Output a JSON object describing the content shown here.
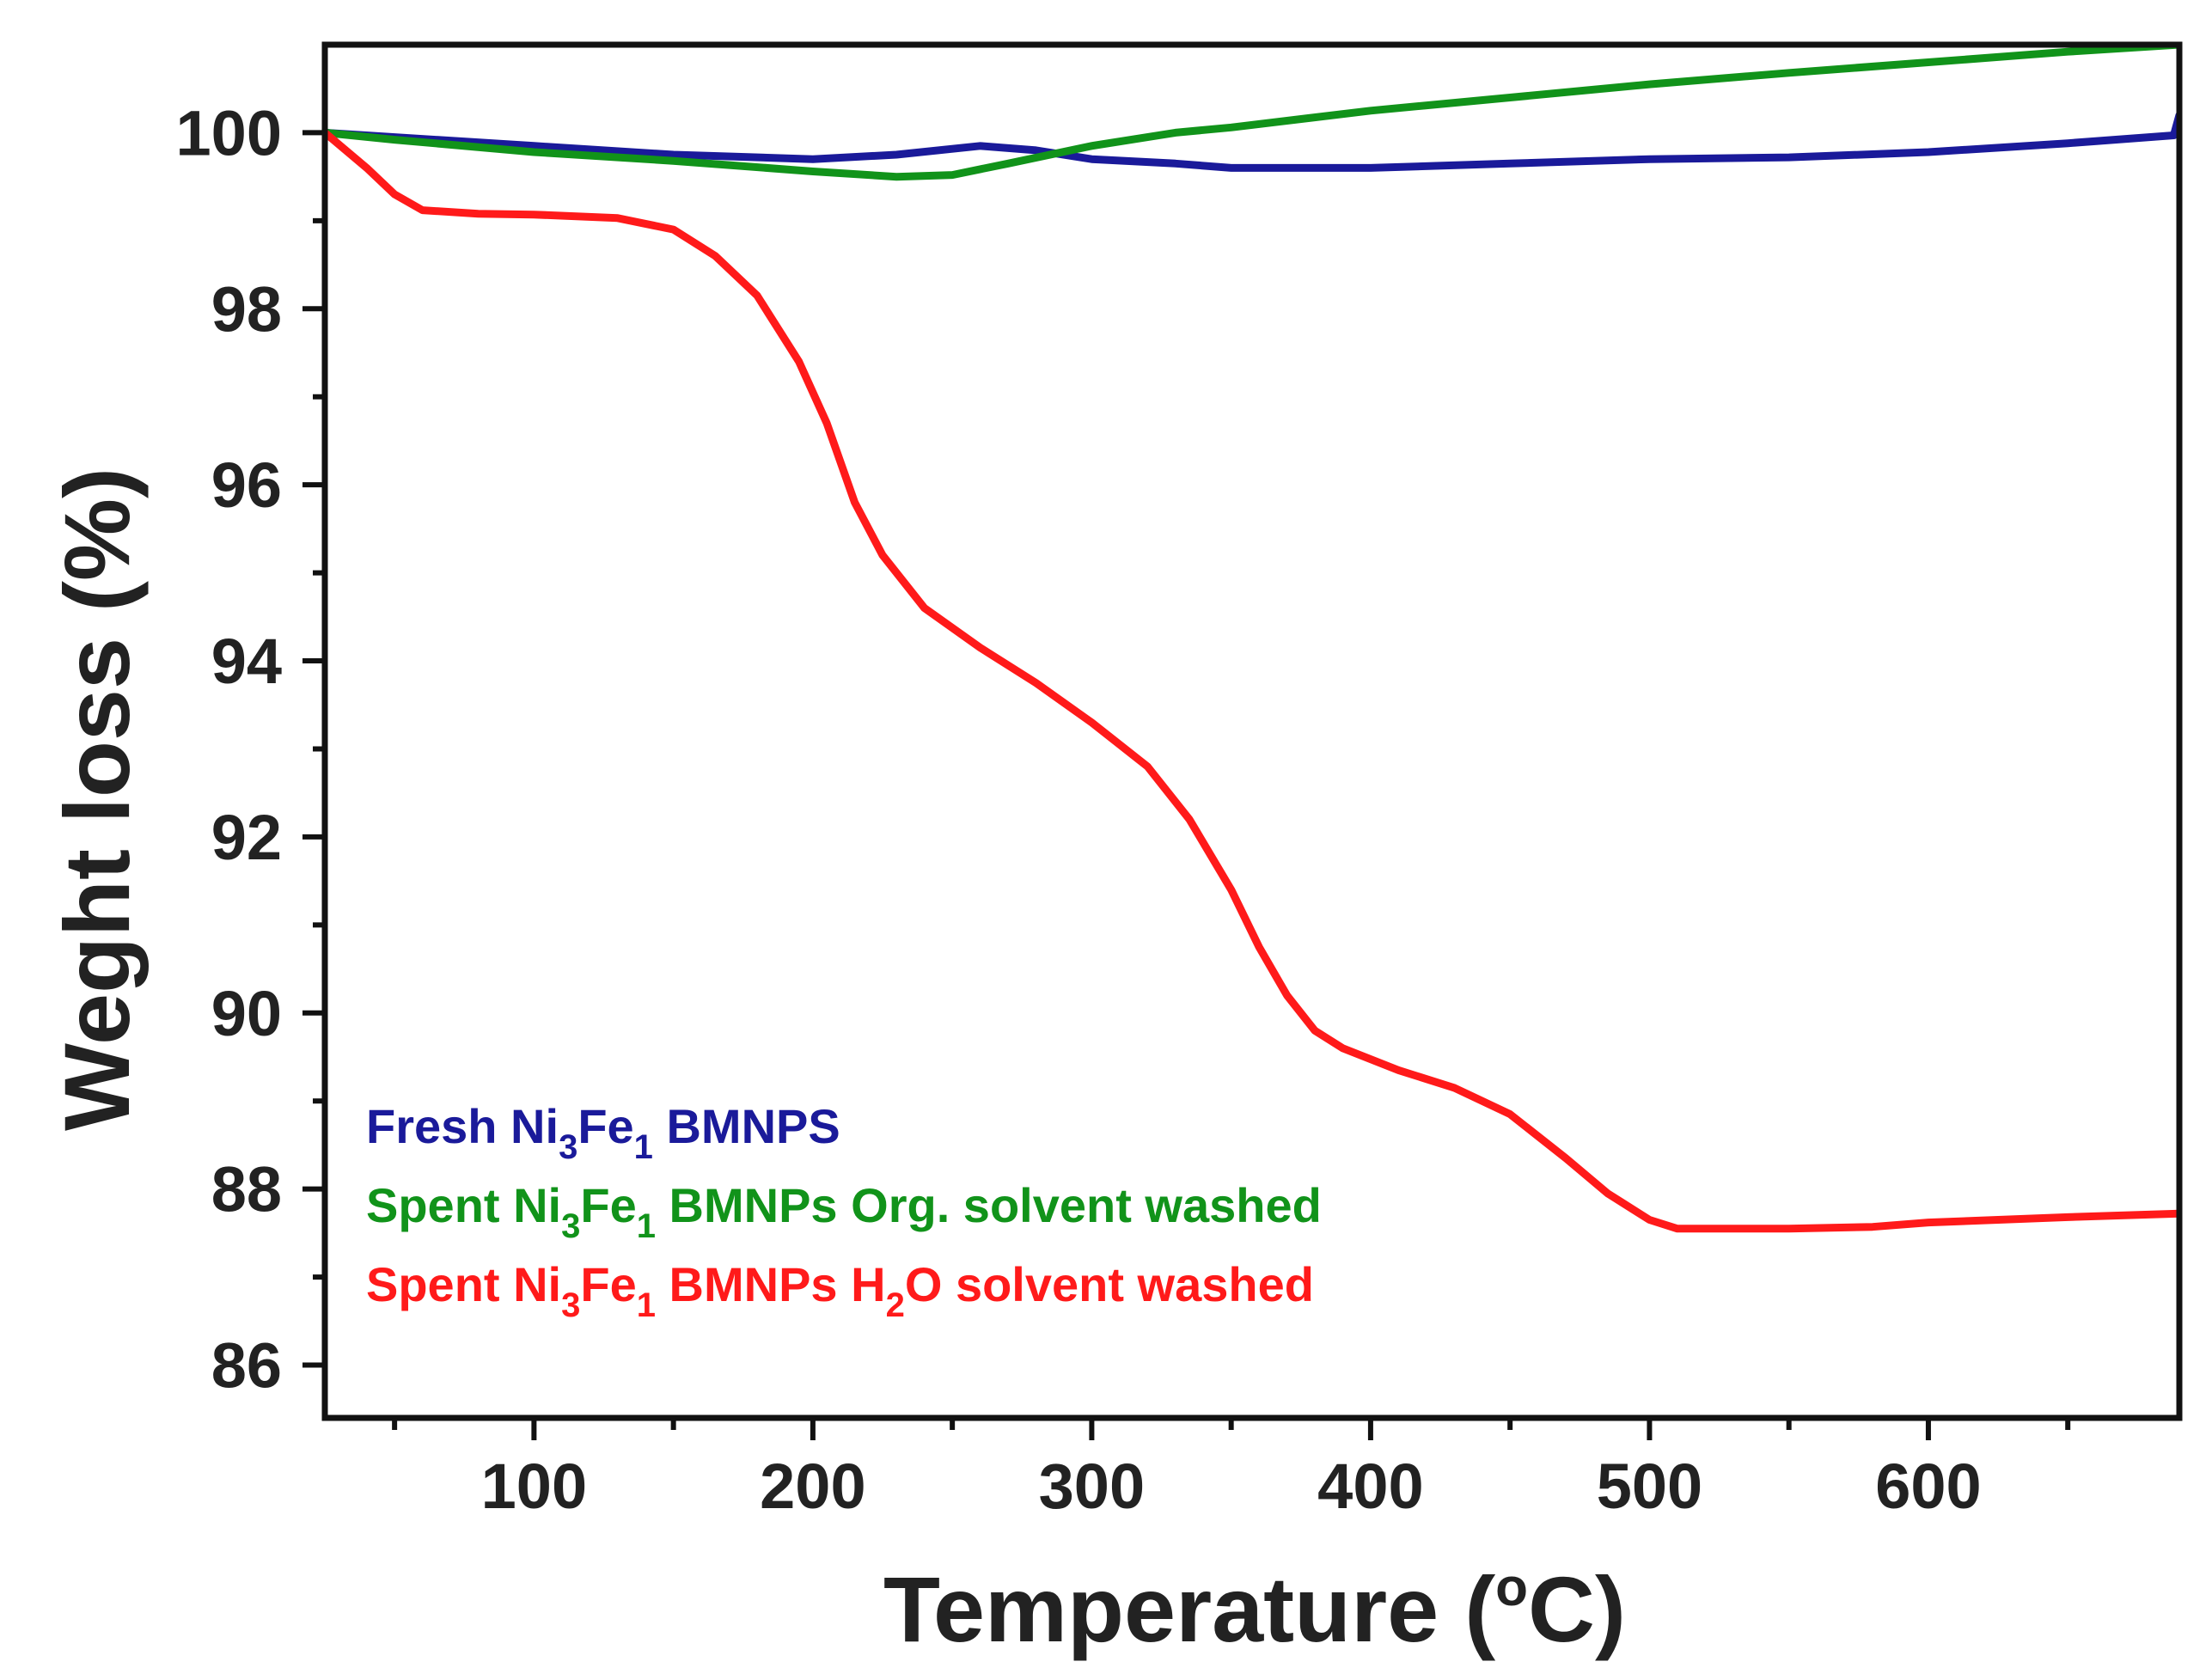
{
  "chart_data": {
    "type": "line",
    "title": "",
    "xlabel": "Temperature (°C)",
    "xlabel_parts": {
      "main": "Temperature (",
      "degree": "o",
      "unit": "C)"
    },
    "ylabel": "Weght loss (%)",
    "xlim": [
      25,
      690
    ],
    "ylim": [
      85.4,
      101
    ],
    "x_ticks": [
      100,
      200,
      300,
      400,
      500,
      600
    ],
    "y_ticks": [
      86,
      88,
      90,
      92,
      94,
      96,
      98,
      100
    ],
    "grid": false,
    "legend_placement": "bottom-left",
    "series": [
      {
        "name": "Fresh Ni3Fe1 BMNPS",
        "legend_parts": [
          {
            "t": "Fresh Ni",
            "sub": false
          },
          {
            "t": "3",
            "sub": true
          },
          {
            "t": "Fe",
            "sub": false
          },
          {
            "t": "1",
            "sub": true
          },
          {
            "t": " BMNPS",
            "sub": false
          }
        ],
        "color": "#1a1a9a",
        "x": [
          25,
          50,
          100,
          150,
          200,
          230,
          260,
          280,
          300,
          330,
          350,
          400,
          450,
          500,
          550,
          600,
          650,
          688,
          690
        ],
        "y": [
          100.0,
          99.95,
          99.85,
          99.75,
          99.7,
          99.75,
          99.85,
          99.8,
          99.7,
          99.65,
          99.6,
          99.6,
          99.65,
          99.7,
          99.72,
          99.78,
          99.88,
          99.97,
          100.2
        ]
      },
      {
        "name": "Spent Ni3Fe1 BMNPs Org. solvent washed",
        "legend_parts": [
          {
            "t": "Spent Ni",
            "sub": false
          },
          {
            "t": "3",
            "sub": true
          },
          {
            "t": "Fe",
            "sub": false
          },
          {
            "t": "1",
            "sub": true
          },
          {
            "t": " BMNPs Org. solvent washed",
            "sub": false
          }
        ],
        "color": "#11931a",
        "x": [
          25,
          50,
          100,
          150,
          200,
          230,
          250,
          270,
          300,
          330,
          350,
          400,
          450,
          500,
          550,
          600,
          650,
          690
        ],
        "y": [
          100.0,
          99.92,
          99.78,
          99.68,
          99.56,
          99.5,
          99.52,
          99.65,
          99.85,
          100.0,
          100.06,
          100.25,
          100.4,
          100.55,
          100.68,
          100.8,
          100.92,
          101.0
        ]
      },
      {
        "name": "Spent Ni3Fe1 BMNPs H2O solvent washed",
        "legend_parts": [
          {
            "t": "Spent Ni",
            "sub": false
          },
          {
            "t": "3",
            "sub": true
          },
          {
            "t": "Fe",
            "sub": false
          },
          {
            "t": "1",
            "sub": true
          },
          {
            "t": " BMNPs H",
            "sub": false
          },
          {
            "t": "2",
            "sub": true
          },
          {
            "t": "O solvent washed",
            "sub": false
          }
        ],
        "color": "#ff1a1a",
        "x": [
          25,
          40,
          50,
          60,
          80,
          100,
          130,
          150,
          165,
          180,
          195,
          205,
          215,
          225,
          240,
          260,
          280,
          300,
          320,
          335,
          350,
          360,
          370,
          380,
          390,
          410,
          430,
          450,
          470,
          485,
          500,
          510,
          550,
          580,
          600,
          650,
          690
        ],
        "y": [
          100.0,
          99.6,
          99.3,
          99.12,
          99.08,
          99.07,
          99.03,
          98.9,
          98.6,
          98.15,
          97.4,
          96.7,
          95.8,
          95.2,
          94.6,
          94.15,
          93.75,
          93.3,
          92.8,
          92.2,
          91.4,
          90.75,
          90.2,
          89.8,
          89.6,
          89.35,
          89.15,
          88.85,
          88.35,
          87.95,
          87.65,
          87.55,
          87.55,
          87.57,
          87.62,
          87.68,
          87.72
        ]
      }
    ]
  }
}
